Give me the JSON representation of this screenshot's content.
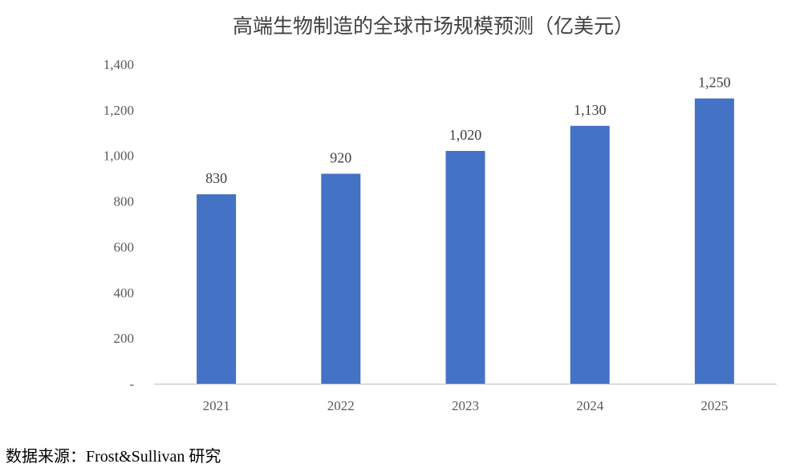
{
  "chart_data": {
    "type": "bar",
    "title": "高端生物制造的全球市场规模预测（亿美元）",
    "categories": [
      "2021",
      "2022",
      "2023",
      "2024",
      "2025"
    ],
    "values": [
      830,
      920,
      1020,
      1130,
      1250
    ],
    "value_labels": [
      "830",
      "920",
      "1,020",
      "1,130",
      "1,250"
    ],
    "ylim": [
      0,
      1400
    ],
    "yticks": [
      0,
      200,
      400,
      600,
      800,
      1000,
      1200,
      1400
    ],
    "ytick_labels": [
      "-",
      "200",
      "400",
      "600",
      "800",
      "1,000",
      "1,200",
      "1,400"
    ],
    "xlabel": "",
    "ylabel": "",
    "grid": false,
    "legend": "none",
    "bar_color": "#4472C4",
    "axis_color": "#BFBFBF"
  },
  "footer": {
    "source": "数据来源：Frost&Sullivan 研究"
  }
}
